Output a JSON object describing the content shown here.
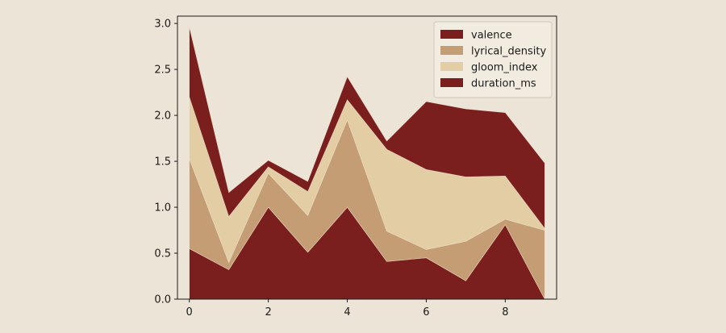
{
  "chart_data": {
    "type": "area",
    "stacked": true,
    "title": "",
    "xlabel": "",
    "ylabel": "",
    "x": [
      0,
      1,
      2,
      3,
      4,
      5,
      6,
      7,
      8,
      9
    ],
    "xlim": [
      -0.3,
      9.3
    ],
    "ylim": [
      0,
      3.08
    ],
    "xticks": [
      0,
      2,
      4,
      6,
      8
    ],
    "yticks": [
      0.0,
      0.5,
      1.0,
      1.5,
      2.0,
      2.5,
      3.0
    ],
    "ytick_labels": [
      "0.0",
      "0.5",
      "1.0",
      "1.5",
      "2.0",
      "2.5",
      "3.0"
    ],
    "grid": false,
    "legend_position": "top-right",
    "series": [
      {
        "name": "valence",
        "color": "#7b1e1e",
        "values": [
          0.55,
          0.32,
          1.0,
          0.51,
          1.0,
          0.41,
          0.45,
          0.2,
          0.81,
          0.0
        ]
      },
      {
        "name": "lyrical_density",
        "color": "#c59d74",
        "values": [
          0.98,
          0.08,
          0.37,
          0.4,
          0.95,
          0.33,
          0.09,
          0.43,
          0.06,
          0.75
        ]
      },
      {
        "name": "gloom_index",
        "color": "#e3cda4",
        "values": [
          0.67,
          0.5,
          0.07,
          0.26,
          0.22,
          0.89,
          0.87,
          0.7,
          0.47,
          0.02
        ]
      },
      {
        "name": "duration_ms",
        "color": "#7b1e1e",
        "values": [
          0.76,
          0.26,
          0.07,
          0.11,
          0.25,
          0.09,
          0.74,
          0.74,
          0.69,
          0.71
        ]
      }
    ]
  }
}
